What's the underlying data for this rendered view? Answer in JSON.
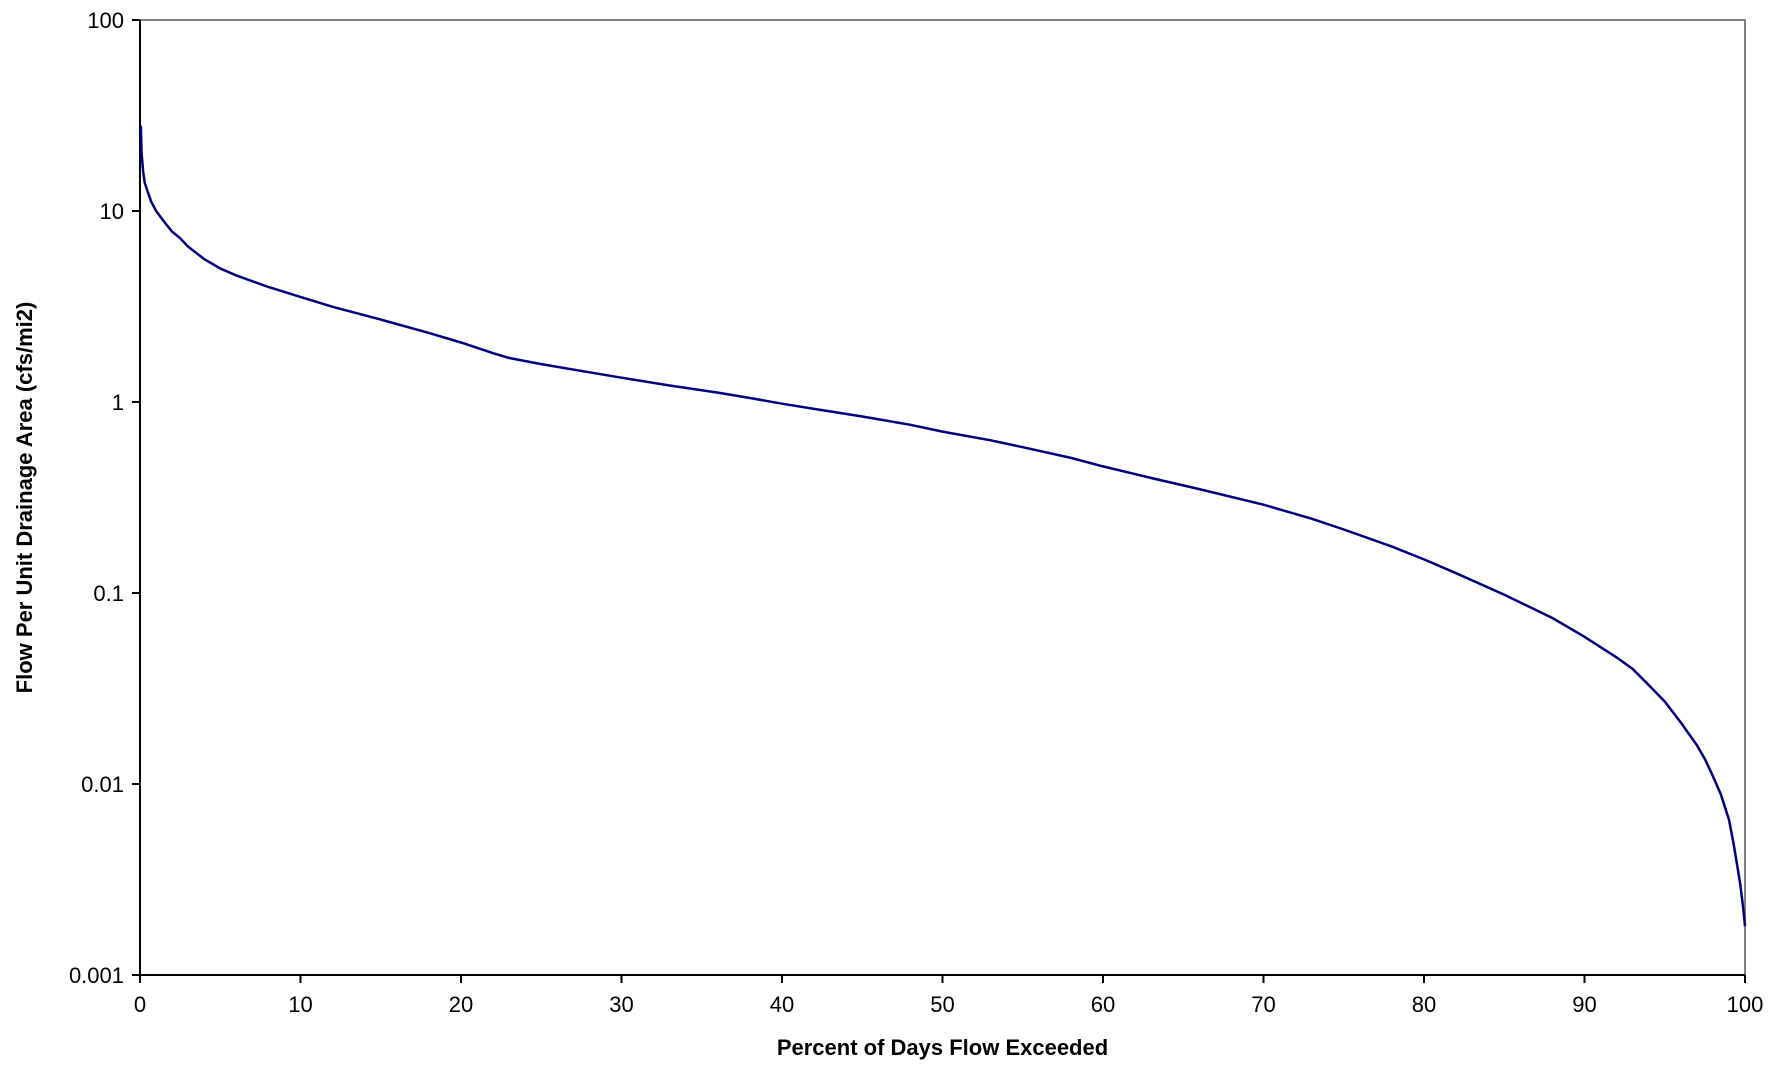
{
  "chart_data": {
    "type": "line",
    "title": "",
    "xlabel": "Percent of Days Flow Exceeded",
    "ylabel": "Flow Per Unit Drainage Area (cfs/mi2)",
    "xlim": [
      0,
      100
    ],
    "ylim": [
      0.001,
      100
    ],
    "yscale": "log",
    "grid": false,
    "legend": "none",
    "x_ticks": [
      {
        "value": 0,
        "label": "0"
      },
      {
        "value": 10,
        "label": "10"
      },
      {
        "value": 20,
        "label": "20"
      },
      {
        "value": 30,
        "label": "30"
      },
      {
        "value": 40,
        "label": "40"
      },
      {
        "value": 50,
        "label": "50"
      },
      {
        "value": 60,
        "label": "60"
      },
      {
        "value": 70,
        "label": "70"
      },
      {
        "value": 80,
        "label": "80"
      },
      {
        "value": 90,
        "label": "90"
      },
      {
        "value": 100,
        "label": "100"
      }
    ],
    "y_ticks": [
      {
        "value": 100,
        "label": "100"
      },
      {
        "value": 10,
        "label": "10"
      },
      {
        "value": 1,
        "label": "1"
      },
      {
        "value": 0.1,
        "label": "0.1"
      },
      {
        "value": 0.01,
        "label": "0.01"
      },
      {
        "value": 0.001,
        "label": "0.001"
      }
    ],
    "colors": {
      "line": "#000080",
      "axis": "#000000",
      "frame": "#808080"
    },
    "series": [
      {
        "x": [
          0.05,
          0.1,
          0.2,
          0.3,
          0.5,
          0.7,
          1,
          1.5,
          2,
          2.5,
          3,
          4,
          5,
          6,
          8,
          10,
          12,
          15,
          18,
          20,
          22,
          23,
          25,
          28,
          30,
          33,
          36,
          38,
          40,
          42,
          45,
          48,
          50,
          53,
          55,
          58,
          60,
          63,
          66,
          70,
          73,
          75,
          78,
          80,
          82,
          85,
          88,
          90,
          92,
          93,
          94,
          95,
          96,
          97,
          97.5,
          98,
          98.5,
          99,
          99.3,
          99.5,
          99.7,
          99.9,
          100
        ],
        "y": [
          28,
          20,
          16,
          14,
          12.5,
          11.2,
          10,
          8.8,
          7.8,
          7.2,
          6.5,
          5.6,
          5.0,
          4.6,
          4.0,
          3.55,
          3.15,
          2.7,
          2.3,
          2.05,
          1.8,
          1.7,
          1.58,
          1.43,
          1.34,
          1.22,
          1.12,
          1.05,
          0.98,
          0.92,
          0.84,
          0.76,
          0.7,
          0.63,
          0.58,
          0.51,
          0.46,
          0.4,
          0.35,
          0.29,
          0.245,
          0.215,
          0.175,
          0.15,
          0.127,
          0.098,
          0.074,
          0.059,
          0.046,
          0.04,
          0.033,
          0.027,
          0.021,
          0.016,
          0.0135,
          0.011,
          0.0088,
          0.0065,
          0.0048,
          0.0038,
          0.003,
          0.0022,
          0.0018
        ]
      }
    ]
  }
}
